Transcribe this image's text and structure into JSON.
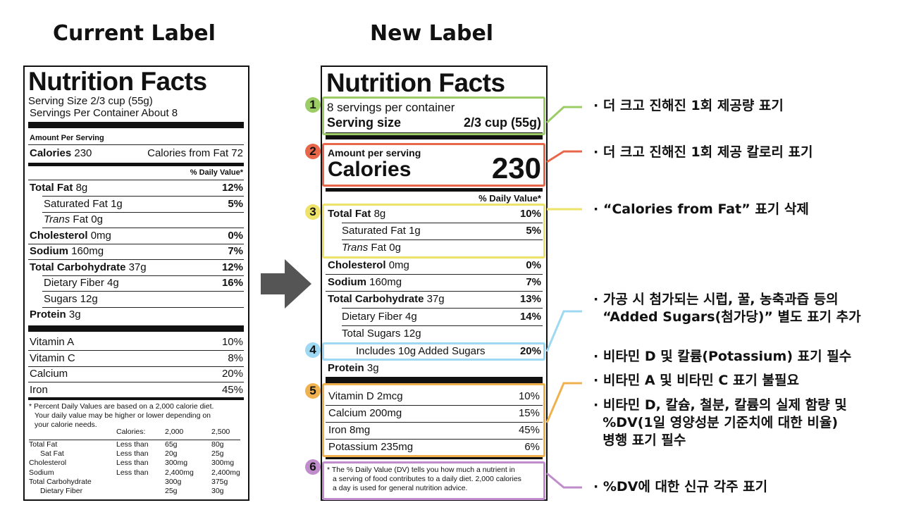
{
  "headings": {
    "current": "Current Label",
    "new": "New Label"
  },
  "current_label": {
    "title": "Nutrition Facts",
    "serving_size": "Serving Size 2/3 cup (55g)",
    "servings_per_container": "Servings Per Container About 8",
    "amount_per_serving": "Amount Per Serving",
    "calories_label": "Calories",
    "calories_value": "230",
    "calories_from_fat": "Calories from Fat 72",
    "daily_value_header": "% Daily Value*",
    "nutrients": [
      {
        "name": "Total Fat",
        "amount": "8g",
        "dv": "12%",
        "bold": true,
        "indent": 0
      },
      {
        "name": "Saturated Fat",
        "amount": "1g",
        "dv": "5%",
        "bold": false,
        "indent": 1
      },
      {
        "name": "Trans",
        "amount": "Fat 0g",
        "dv": "",
        "bold": false,
        "indent": 1
      },
      {
        "name": "Cholesterol",
        "amount": "0mg",
        "dv": "0%",
        "bold": true,
        "indent": 0
      },
      {
        "name": "Sodium",
        "amount": "160mg",
        "dv": "7%",
        "bold": true,
        "indent": 0
      },
      {
        "name": "Total Carbohydrate",
        "amount": "37g",
        "dv": "12%",
        "bold": true,
        "indent": 0
      },
      {
        "name": "Dietary Fiber",
        "amount": "4g",
        "dv": "16%",
        "bold": false,
        "indent": 1
      },
      {
        "name": "Sugars",
        "amount": "12g",
        "dv": "",
        "bold": false,
        "indent": 1
      },
      {
        "name": "Protein",
        "amount": "3g",
        "dv": "",
        "bold": true,
        "indent": 0
      }
    ],
    "vitamins": [
      {
        "name": "Vitamin A",
        "dv": "10%"
      },
      {
        "name": "Vitamin C",
        "dv": "8%"
      },
      {
        "name": "Calcium",
        "dv": "20%"
      },
      {
        "name": "Iron",
        "dv": "45%"
      }
    ],
    "footnote_lines": [
      "* Percent Daily Values are based on a 2,000 calorie diet.",
      "Your daily value may be higher or lower depending on",
      "your calorie needs."
    ],
    "table_header": {
      "col1": "",
      "col2": "Calories:",
      "col3": "2,000",
      "col4": "2,500"
    },
    "table_rows": [
      {
        "c1": "Total Fat",
        "c2": "Less than",
        "c3": "65g",
        "c4": "80g",
        "indent": false
      },
      {
        "c1": "Sat Fat",
        "c2": "Less than",
        "c3": "20g",
        "c4": "25g",
        "indent": true
      },
      {
        "c1": "Cholesterol",
        "c2": "Less than",
        "c3": "300mg",
        "c4": "300mg",
        "indent": false
      },
      {
        "c1": "Sodium",
        "c2": "Less than",
        "c3": "2,400mg",
        "c4": "2,400mg",
        "indent": false
      },
      {
        "c1": "Total Carbohydrate",
        "c2": "",
        "c3": "300g",
        "c4": "375g",
        "indent": false
      },
      {
        "c1": "Dietary Fiber",
        "c2": "",
        "c3": "25g",
        "c4": "30g",
        "indent": true
      }
    ]
  },
  "new_label": {
    "title": "Nutrition Facts",
    "servings_per_container": "8 servings per container",
    "serving_size_label": "Serving size",
    "serving_size_value": "2/3 cup (55g)",
    "amount_per_serving": "Amount per serving",
    "calories_label": "Calories",
    "calories_value": "230",
    "daily_value_header": "% Daily Value*",
    "nutrients": [
      {
        "name": "Total Fat",
        "amount": "8g",
        "dv": "10%",
        "bold": true,
        "indent": 0
      },
      {
        "name": "Saturated Fat",
        "amount": "1g",
        "dv": "5%",
        "bold": false,
        "indent": 1
      },
      {
        "name": "Trans",
        "amount": "Fat 0g",
        "dv": "",
        "bold": false,
        "indent": 1
      },
      {
        "name": "Cholesterol",
        "amount": "0mg",
        "dv": "0%",
        "bold": true,
        "indent": 0
      },
      {
        "name": "Sodium",
        "amount": "160mg",
        "dv": "7%",
        "bold": true,
        "indent": 0
      },
      {
        "name": "Total Carbohydrate",
        "amount": "37g",
        "dv": "13%",
        "bold": true,
        "indent": 0
      },
      {
        "name": "Dietary Fiber",
        "amount": "4g",
        "dv": "14%",
        "bold": false,
        "indent": 1
      },
      {
        "name": "Total Sugars",
        "amount": "12g",
        "dv": "",
        "bold": false,
        "indent": 1
      },
      {
        "name": "Includes 10g Added Sugars",
        "amount": "",
        "dv": "20%",
        "bold": false,
        "indent": 2
      },
      {
        "name": "Protein",
        "amount": "3g",
        "dv": "",
        "bold": true,
        "indent": 0
      }
    ],
    "minerals": [
      {
        "name": "Vitamin D 2mcg",
        "dv": "10%"
      },
      {
        "name": "Calcium 200mg",
        "dv": "15%"
      },
      {
        "name": "Iron 8mg",
        "dv": "45%"
      },
      {
        "name": "Potassium 235mg",
        "dv": "6%"
      }
    ],
    "footnote_lines": [
      "* The % Daily Value (DV) tells you how much a nutrient in",
      "a serving of food contributes to a daily diet. 2,000 calories",
      "a day is used for general nutrition advice."
    ]
  },
  "annotations": [
    {
      "number": "1",
      "color": "#9ccc65",
      "lines": [
        "· 더 크고 진해진 1회 제공량 표기"
      ]
    },
    {
      "number": "2",
      "color": "#e8664a",
      "lines": [
        "· 더 크고 진해진 1회 제공 칼로리 표기"
      ]
    },
    {
      "number": "3",
      "color": "#eee36a",
      "lines": [
        "· “Calories from Fat” 표기 삭제"
      ]
    },
    {
      "number": "4",
      "color": "#9fd8f2",
      "lines": [
        "· 가공 시 첨가되는 시럽, 꿀, 농축과즙 등의",
        "  “Added Sugars(첨가당)” 별도 표기 추가"
      ]
    },
    {
      "number": "5",
      "color": "#f0b24f",
      "lines": [
        "· 비타민 D 및 칼륨(Potassium) 표기 필수",
        "· 비타민 A 및 비타민 C 표기 불필요",
        "· 비타민 D, 칼슘, 철분, 칼륨의 실제 함량 및",
        "  %DV(1일 영양성분 기준치에 대한 비율)",
        "  병행 표기 필수"
      ]
    },
    {
      "number": "6",
      "color": "#c08ccc",
      "lines": [
        "· %DV에 대한 신규 각주 표기"
      ]
    }
  ]
}
